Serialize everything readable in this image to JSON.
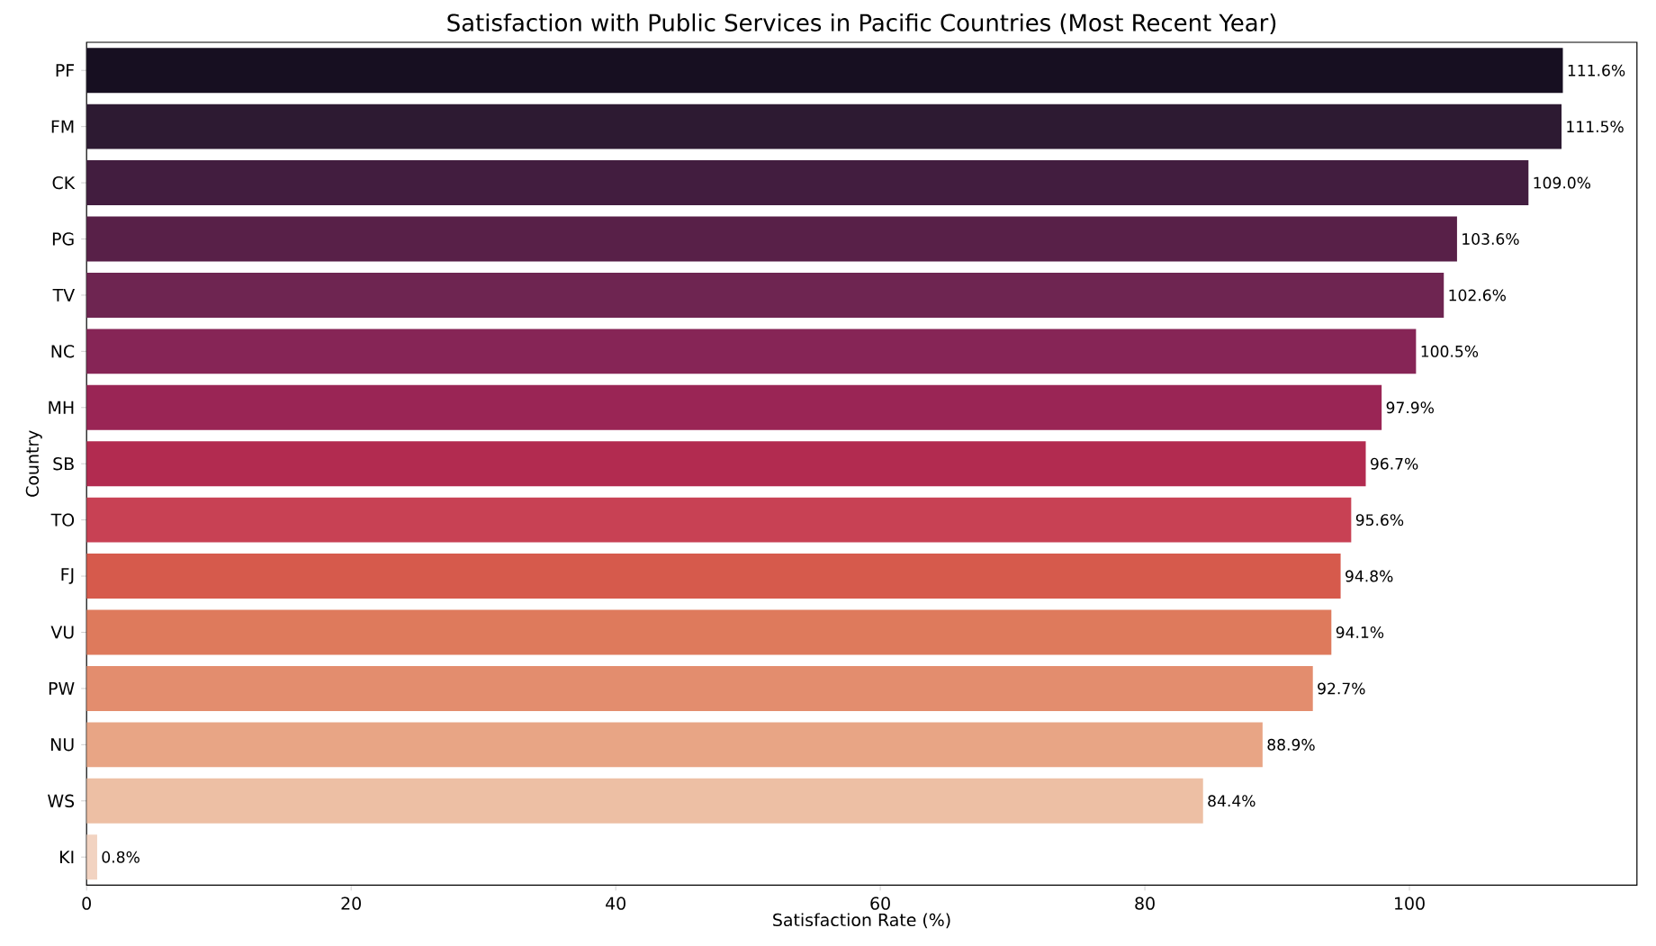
{
  "chart_data": {
    "type": "bar",
    "orientation": "horizontal",
    "title": "Satisfaction with Public Services in Pacific Countries (Most Recent Year)",
    "xlabel": "Satisfaction Rate (%)",
    "ylabel": "Country",
    "categories": [
      "PF",
      "FM",
      "CK",
      "PG",
      "TV",
      "NC",
      "MH",
      "SB",
      "TO",
      "FJ",
      "VU",
      "PW",
      "NU",
      "WS",
      "KI"
    ],
    "values": [
      111.6,
      111.5,
      109.0,
      103.6,
      102.6,
      100.5,
      97.9,
      96.7,
      95.6,
      94.8,
      94.1,
      92.7,
      88.9,
      84.4,
      0.8
    ],
    "value_labels": [
      "111.6%",
      "111.5%",
      "109.0%",
      "103.6%",
      "102.6%",
      "100.5%",
      "97.9%",
      "96.7%",
      "95.6%",
      "94.8%",
      "94.1%",
      "92.7%",
      "88.9%",
      "84.4%",
      "0.8%"
    ],
    "colors": [
      "#170f21",
      "#2d1a32",
      "#421d3f",
      "#582048",
      "#6e2551",
      "#862556",
      "#9a2555",
      "#b22b50",
      "#c84154",
      "#d65a4c",
      "#de7a5c",
      "#e38d6e",
      "#e8a585",
      "#edbfa4",
      "#f2d3c1"
    ],
    "xlim": [
      0,
      117.2
    ],
    "xticks": [
      0,
      20,
      40,
      60,
      80,
      100
    ],
    "grid": false
  }
}
